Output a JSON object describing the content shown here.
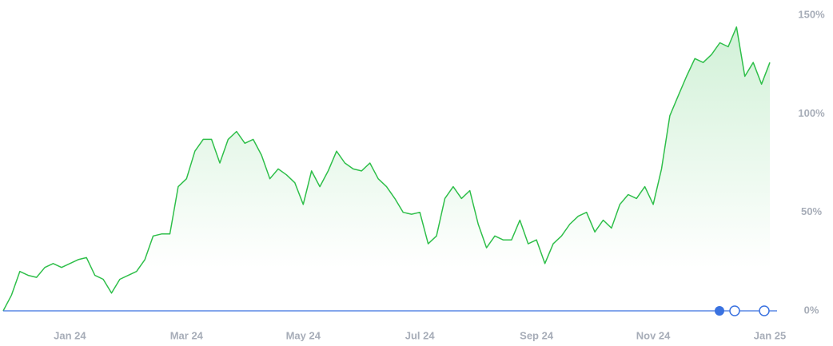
{
  "chart_data": {
    "type": "line",
    "categories": [
      null,
      null,
      null,
      null,
      null,
      null,
      null,
      null,
      "Jan 24",
      null,
      null,
      null,
      null,
      null,
      null,
      null,
      null,
      null,
      null,
      null,
      null,
      null,
      "Mar 24",
      null,
      null,
      null,
      null,
      null,
      null,
      null,
      null,
      null,
      null,
      null,
      null,
      null,
      "May 24",
      null,
      null,
      null,
      null,
      null,
      null,
      null,
      null,
      null,
      null,
      null,
      null,
      null,
      "Jul 24",
      null,
      null,
      null,
      null,
      null,
      null,
      null,
      null,
      null,
      null,
      null,
      null,
      null,
      "Sep 24",
      null,
      null,
      null,
      null,
      null,
      null,
      null,
      null,
      null,
      null,
      null,
      null,
      null,
      "Nov 24",
      null,
      null,
      null,
      null,
      null,
      null,
      null,
      null,
      null,
      null,
      null,
      null,
      null,
      "Jan 25"
    ],
    "series": [
      {
        "color": "#2fbf4a",
        "values": [
          0,
          8,
          20,
          18,
          17,
          22,
          24,
          22,
          24,
          26,
          27,
          18,
          16,
          9,
          16,
          18,
          20,
          26,
          38,
          39,
          39,
          63,
          67,
          81,
          87,
          87,
          75,
          87,
          91,
          85,
          87,
          79,
          67,
          72,
          69,
          65,
          54,
          71,
          63,
          71,
          81,
          75,
          72,
          71,
          75,
          67,
          63,
          57,
          50,
          49,
          50,
          34,
          38,
          57,
          63,
          57,
          61,
          44,
          32,
          38,
          36,
          36,
          46,
          34,
          36,
          24,
          34,
          38,
          44,
          48,
          50,
          40,
          46,
          42,
          54,
          59,
          57,
          63,
          54,
          72,
          99,
          109,
          119,
          128,
          126,
          130,
          136,
          134,
          144,
          119,
          126,
          115,
          126
        ]
      }
    ],
    "ylim": [
      0,
      150
    ],
    "yticks": [
      {
        "value": 0,
        "label": "0%"
      },
      {
        "value": 50,
        "label": "50%"
      },
      {
        "value": 100,
        "label": "100%"
      },
      {
        "value": 150,
        "label": "150%"
      }
    ],
    "grid": false
  }
}
